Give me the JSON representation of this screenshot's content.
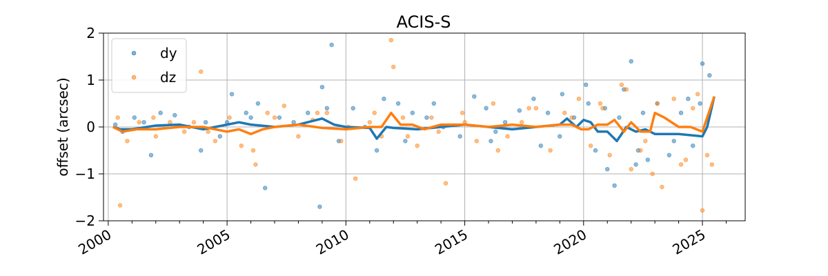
{
  "chart_data": {
    "type": "scatter",
    "title": "ACIS-S",
    "xlabel": "",
    "ylabel": "offset (arcsec)",
    "xlim": [
      1999.8,
      2026.8
    ],
    "ylim": [
      -2,
      2
    ],
    "x_ticks": [
      2000,
      2005,
      2010,
      2015,
      2020,
      2025
    ],
    "x_tick_labels": [
      "2000",
      "2005",
      "2010",
      "2015",
      "2020",
      "2025"
    ],
    "y_ticks": [
      -2,
      -1,
      0,
      1,
      2
    ],
    "y_tick_labels": [
      "−2",
      "−1",
      "0",
      "1",
      "2"
    ],
    "grid": true,
    "legend": "top-left",
    "series": [
      {
        "name": "dy",
        "color": "#1f77b4",
        "trend_x": [
          2000.2,
          2000.5,
          2001,
          2002,
          2003,
          2004,
          2005,
          2005.5,
          2006,
          2007,
          2008,
          2009,
          2009.5,
          2010,
          2011,
          2011.3,
          2011.7,
          2012,
          2013,
          2014,
          2015,
          2016,
          2017,
          2018,
          2019,
          2019.3,
          2019.7,
          2020,
          2020.3,
          2020.6,
          2021,
          2021.4,
          2021.8,
          2022.2,
          2022.6,
          2023,
          2024,
          2025,
          2025.2,
          2025.5
        ],
        "trend_y": [
          0.0,
          -0.05,
          -0.05,
          0.03,
          0.05,
          -0.05,
          0.05,
          0.1,
          0.05,
          0.0,
          0.05,
          0.18,
          0.05,
          0.0,
          -0.02,
          -0.25,
          0.0,
          -0.02,
          -0.05,
          0.0,
          0.05,
          0.0,
          -0.05,
          0.0,
          0.05,
          0.18,
          0.0,
          0.15,
          0.1,
          -0.1,
          -0.1,
          -0.3,
          0.0,
          -0.1,
          -0.05,
          -0.15,
          -0.15,
          -0.2,
          0.0,
          0.65
        ],
        "points_x": [
          2000.3,
          2000.6,
          2001.1,
          2001.5,
          2002.2,
          2002.8,
          2003.4,
          2004.1,
          2004.7,
          2005.2,
          2005.8,
          2006.3,
          2006.6,
          2007.2,
          2007.8,
          2008.4,
          2009.0,
          2009.4,
          2009.7,
          2010.3,
          2010.8,
          2011.3,
          2011.6,
          2012.2,
          2012.8,
          2013.4,
          2014.1,
          2014.8,
          2015.4,
          2016.1,
          2016.7,
          2017.3,
          2017.9,
          2018.5,
          2019.1,
          2019.6,
          2020.1,
          2020.5,
          2020.9,
          2021.3,
          2021.7,
          2022.0,
          2022.3,
          2022.7,
          2023.1,
          2023.6,
          2024.1,
          2024.6,
          2025.0,
          2025.3,
          2001.8,
          2003.9,
          2006.0,
          2008.9,
          2012.5,
          2015.9,
          2018.2,
          2020.2,
          2021.0,
          2022.5,
          2023.8,
          2024.9,
          2005.0,
          2009.2,
          2019.0,
          2021.5,
          2022.2,
          2024.4,
          2013.7,
          2016.3
        ],
        "points_y": [
          0.05,
          -0.1,
          0.2,
          0.1,
          0.3,
          0.25,
          0.0,
          0.1,
          -0.2,
          0.7,
          0.3,
          0.5,
          -1.3,
          0.2,
          0.1,
          0.3,
          0.85,
          1.75,
          -0.3,
          0.4,
          0.0,
          -0.5,
          0.6,
          0.5,
          0.3,
          0.2,
          0.0,
          -0.2,
          0.65,
          -0.3,
          0.1,
          0.35,
          0.6,
          0.3,
          0.7,
          0.2,
          0.9,
          -0.5,
          0.4,
          -1.25,
          0.8,
          1.4,
          -0.5,
          -0.7,
          0.5,
          -0.6,
          0.3,
          -0.4,
          1.35,
          1.1,
          -0.6,
          -0.5,
          0.2,
          -1.7,
          -0.3,
          0.4,
          -0.4,
          0.5,
          -0.9,
          0.3,
          -0.3,
          0.5,
          0.1,
          0.4,
          -0.2,
          0.2,
          -0.8,
          0.6,
          0.5,
          -0.1
        ]
      },
      {
        "name": "dz",
        "color": "#ff7f0e",
        "trend_x": [
          2000.2,
          2000.6,
          2001.2,
          2002,
          2003,
          2004,
          2005,
          2005.5,
          2006,
          2006.5,
          2007,
          2008,
          2009,
          2010,
          2011,
          2011.5,
          2011.9,
          2012.3,
          2012.8,
          2013.3,
          2014,
          2015,
          2016,
          2017,
          2018,
          2019,
          2019.5,
          2019.9,
          2020.2,
          2020.6,
          2021,
          2021.3,
          2021.7,
          2022,
          2022.4,
          2022.8,
          2023,
          2023.4,
          2024,
          2024.5,
          2025,
          2025.5
        ],
        "trend_y": [
          0.0,
          -0.1,
          -0.05,
          -0.05,
          0.0,
          0.0,
          -0.1,
          -0.05,
          -0.15,
          -0.05,
          0.0,
          0.05,
          -0.02,
          -0.05,
          0.0,
          0.0,
          0.3,
          0.05,
          0.05,
          -0.05,
          0.05,
          0.05,
          0.0,
          0.05,
          0.0,
          0.05,
          0.05,
          -0.05,
          -0.05,
          0.05,
          0.05,
          0.15,
          -0.1,
          0.1,
          -0.1,
          -0.1,
          0.3,
          0.2,
          0.0,
          0.0,
          -0.1,
          0.65
        ],
        "points_x": [
          2000.4,
          2000.8,
          2001.3,
          2002.0,
          2002.6,
          2003.2,
          2003.9,
          2004.5,
          2005.1,
          2005.6,
          2006.2,
          2006.7,
          2007.4,
          2008.0,
          2008.6,
          2009.2,
          2009.8,
          2010.4,
          2011.0,
          2011.5,
          2011.9,
          2012.0,
          2012.4,
          2013.0,
          2013.6,
          2014.2,
          2014.9,
          2015.5,
          2016.2,
          2016.8,
          2017.4,
          2018.0,
          2018.6,
          2019.2,
          2019.8,
          2020.3,
          2020.7,
          2021.1,
          2021.6,
          2022.0,
          2022.4,
          2022.9,
          2023.3,
          2023.8,
          2024.3,
          2024.8,
          2025.0,
          2025.4,
          2000.5,
          2001.9,
          2003.6,
          2006.1,
          2008.8,
          2010.1,
          2012.6,
          2015.0,
          2017.7,
          2019.5,
          2021.8,
          2022.6,
          2023.1,
          2024.1,
          2024.6,
          2025.2,
          2004.2,
          2007.0,
          2011.2,
          2013.9,
          2016.4,
          2020.8
        ],
        "points_y": [
          0.2,
          -0.3,
          0.1,
          -0.2,
          0.1,
          -0.1,
          1.18,
          -0.3,
          0.2,
          -0.4,
          -0.8,
          0.3,
          0.45,
          -0.2,
          0.15,
          0.3,
          -0.3,
          -1.1,
          0.1,
          -0.2,
          1.85,
          1.28,
          0.2,
          -0.4,
          0.2,
          -1.2,
          0.3,
          -0.3,
          0.5,
          -0.2,
          0.1,
          0.4,
          -0.5,
          0.3,
          0.6,
          -0.4,
          0.5,
          -0.6,
          0.9,
          -0.9,
          -0.5,
          -1.0,
          -1.28,
          0.6,
          -0.7,
          0.7,
          -1.78,
          -0.8,
          -1.67,
          0.2,
          0.1,
          -0.5,
          0.3,
          0.0,
          -0.2,
          0.1,
          0.4,
          0.2,
          0.8,
          -0.3,
          0.5,
          -0.8,
          0.4,
          -0.6,
          -0.1,
          0.2,
          0.3,
          -0.1,
          -0.5,
          0.4
        ]
      }
    ]
  }
}
